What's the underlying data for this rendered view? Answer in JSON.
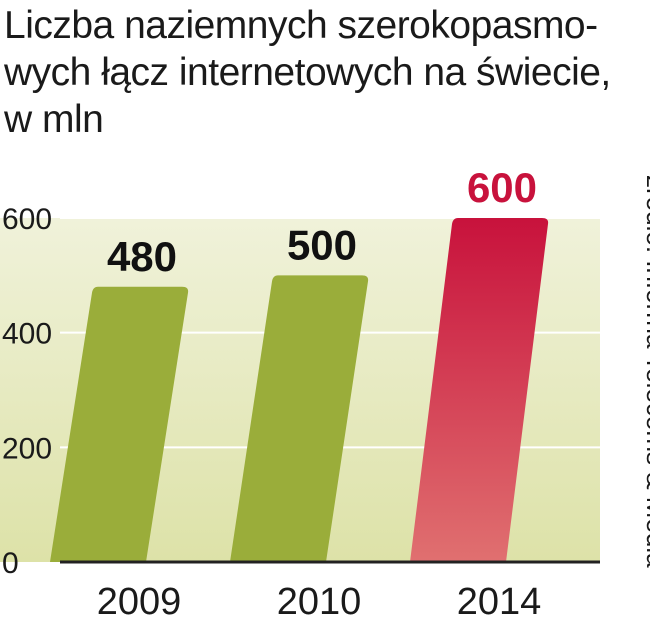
{
  "title_lines": [
    "Liczba naziemnych szerokopasmo-",
    "wych łącz internetowych na świecie,",
    "w mln"
  ],
  "source": "źródło: Informa Telecoms & Media",
  "colors": {
    "bar_green": "#9aad3a",
    "bar_red_top": "#c8123c",
    "bar_red_bottom": "#e07070",
    "background_top": "#f0f2da",
    "background_bottom": "#dde2a8",
    "highlight_label": "#c8123c"
  },
  "chart_data": {
    "type": "bar",
    "title": "Liczba naziemnych szerokopasmowych łącz internetowych na świecie, w mln",
    "categories": [
      "2009",
      "2010",
      "2014"
    ],
    "values": [
      480,
      500,
      600
    ],
    "data_labels": [
      "480",
      "500",
      "600"
    ],
    "highlight": "2014",
    "y_ticks": [
      "0",
      "200",
      "400",
      "600"
    ],
    "ylim": [
      0,
      600
    ],
    "grid": true,
    "legend": "none"
  }
}
